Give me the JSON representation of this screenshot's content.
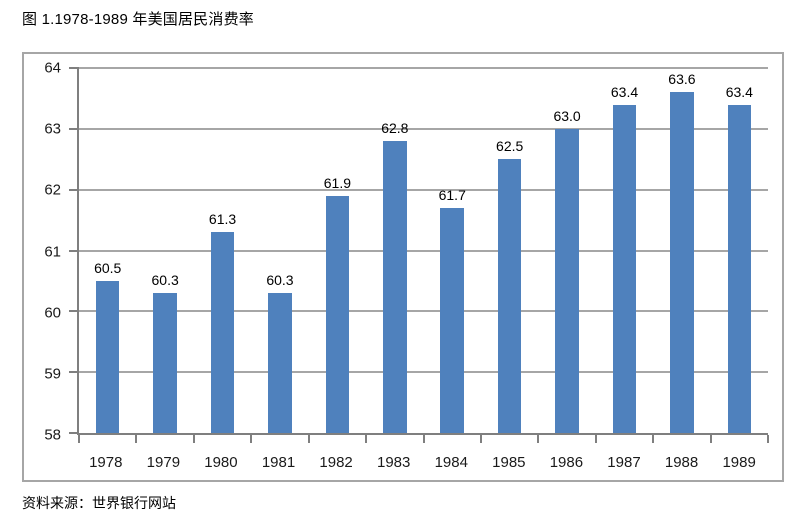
{
  "title": "图 1.1978-1989 年美国居民消费率",
  "source": "资料来源：世界银行网站",
  "colors": {
    "bar": "#4F81BD",
    "gridline": "#A6A6A6",
    "axis": "#7F7F7F",
    "border": "#A6A6A6"
  },
  "chart_data": {
    "type": "bar",
    "title": "图 1.1978-1989 年美国居民消费率",
    "categories": [
      "1978",
      "1979",
      "1980",
      "1981",
      "1982",
      "1983",
      "1984",
      "1985",
      "1986",
      "1987",
      "1988",
      "1989"
    ],
    "values": [
      60.5,
      60.3,
      61.3,
      60.3,
      61.9,
      62.8,
      61.7,
      62.5,
      63.0,
      63.4,
      63.6,
      63.4
    ],
    "value_labels": [
      "60.5",
      "60.3",
      "61.3",
      "60.3",
      "61.9",
      "62.8",
      "61.7",
      "62.5",
      "63.0",
      "63.4",
      "63.6",
      "63.4"
    ],
    "xlabel": "",
    "ylabel": "",
    "ylim": [
      58,
      64
    ],
    "ytick_step": 1,
    "ytick_labels": [
      "58",
      "59",
      "60",
      "61",
      "62",
      "63",
      "64"
    ],
    "grid": true,
    "legend": "none",
    "value_labels_shown": true
  }
}
